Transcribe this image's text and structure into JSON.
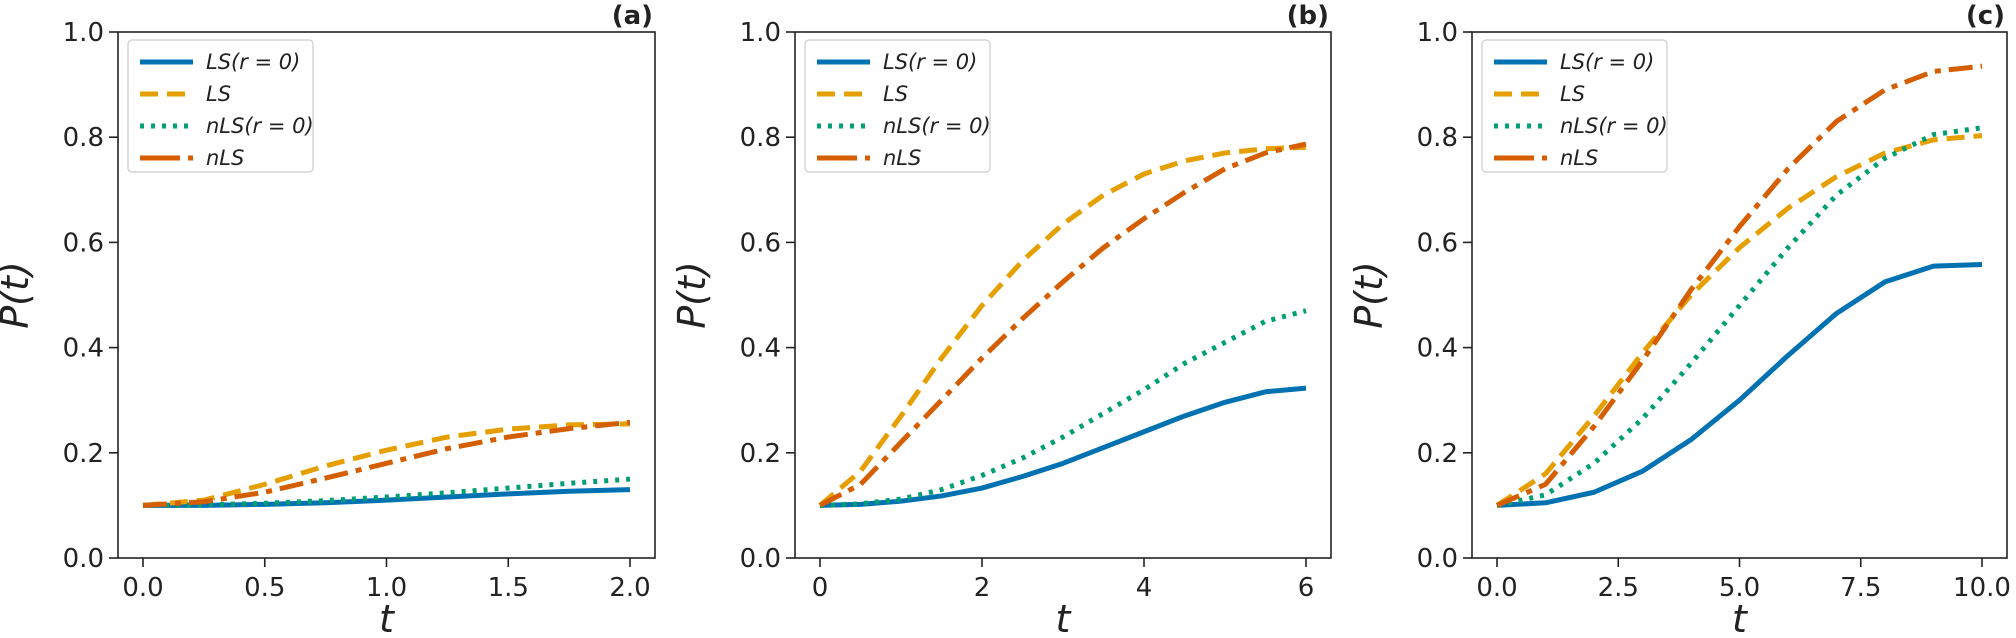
{
  "chart_data": [
    {
      "type": "line",
      "panel_label": "(a)",
      "xlabel": "t",
      "ylabel": "P(t)",
      "xlim": [
        0.0,
        2.0
      ],
      "ylim": [
        0.0,
        1.0
      ],
      "xticks": [
        "0.0",
        "0.5",
        "1.0",
        "1.5",
        "2.0"
      ],
      "yticks": [
        "0.0",
        "0.2",
        "0.4",
        "0.6",
        "0.8",
        "1.0"
      ],
      "legend_position": "top-left",
      "grid": false,
      "x": [
        0.0,
        0.25,
        0.5,
        0.75,
        1.0,
        1.25,
        1.5,
        1.75,
        2.0
      ],
      "series": [
        {
          "name": "LS(r = 0)",
          "style": "solid",
          "color": "#0072b2",
          "values": [
            0.1,
            0.1,
            0.102,
            0.105,
            0.11,
            0.116,
            0.122,
            0.127,
            0.13
          ]
        },
        {
          "name": "LS",
          "style": "dashed",
          "color": "#e69f00",
          "values": [
            0.1,
            0.11,
            0.14,
            0.175,
            0.205,
            0.23,
            0.245,
            0.253,
            0.255
          ]
        },
        {
          "name": "nLS(r = 0)",
          "style": "dotted",
          "color": "#009e73",
          "values": [
            0.1,
            0.101,
            0.104,
            0.109,
            0.116,
            0.124,
            0.133,
            0.142,
            0.15
          ]
        },
        {
          "name": "nLS",
          "style": "dashdot",
          "color": "#d55e00",
          "values": [
            0.1,
            0.107,
            0.125,
            0.152,
            0.18,
            0.208,
            0.23,
            0.246,
            0.258
          ]
        }
      ]
    },
    {
      "type": "line",
      "panel_label": "(b)",
      "xlabel": "t",
      "ylabel": "P(t)",
      "xlim": [
        0,
        6
      ],
      "ylim": [
        0.0,
        1.0
      ],
      "xticks": [
        "0",
        "2",
        "4",
        "6"
      ],
      "yticks": [
        "0.0",
        "0.2",
        "0.4",
        "0.6",
        "0.8",
        "1.0"
      ],
      "legend_position": "top-left",
      "grid": false,
      "x": [
        0,
        0.5,
        1,
        1.5,
        2,
        2.5,
        3,
        3.5,
        4,
        4.5,
        5,
        5.5,
        6
      ],
      "series": [
        {
          "name": "LS(r = 0)",
          "style": "solid",
          "color": "#0072b2",
          "values": [
            0.1,
            0.102,
            0.108,
            0.118,
            0.133,
            0.155,
            0.18,
            0.21,
            0.24,
            0.27,
            0.296,
            0.316,
            0.323
          ]
        },
        {
          "name": "LS",
          "style": "dashed",
          "color": "#e69f00",
          "values": [
            0.1,
            0.165,
            0.27,
            0.38,
            0.48,
            0.565,
            0.635,
            0.69,
            0.73,
            0.755,
            0.77,
            0.778,
            0.781
          ]
        },
        {
          "name": "nLS(r = 0)",
          "style": "dotted",
          "color": "#009e73",
          "values": [
            0.1,
            0.103,
            0.112,
            0.13,
            0.157,
            0.19,
            0.23,
            0.275,
            0.32,
            0.37,
            0.41,
            0.45,
            0.47
          ]
        },
        {
          "name": "nLS",
          "style": "dashdot",
          "color": "#d55e00",
          "values": [
            0.1,
            0.14,
            0.22,
            0.3,
            0.38,
            0.455,
            0.525,
            0.59,
            0.645,
            0.695,
            0.74,
            0.77,
            0.787
          ]
        }
      ]
    },
    {
      "type": "line",
      "panel_label": "(c)",
      "xlabel": "t",
      "ylabel": "P(t)",
      "xlim": [
        0.0,
        10.0
      ],
      "ylim": [
        0.0,
        1.0
      ],
      "xticks": [
        "0.0",
        "2.5",
        "5.0",
        "7.5",
        "10.0"
      ],
      "yticks": [
        "0.0",
        "0.2",
        "0.4",
        "0.6",
        "0.8",
        "1.0"
      ],
      "legend_position": "top-left",
      "grid": false,
      "x": [
        0,
        1,
        2,
        3,
        4,
        5,
        6,
        7,
        8,
        9,
        10
      ],
      "series": [
        {
          "name": "LS(r = 0)",
          "style": "solid",
          "color": "#0072b2",
          "values": [
            0.1,
            0.105,
            0.125,
            0.165,
            0.225,
            0.3,
            0.385,
            0.465,
            0.525,
            0.555,
            0.558
          ]
        },
        {
          "name": "LS",
          "style": "dashed",
          "color": "#e69f00",
          "values": [
            0.1,
            0.16,
            0.27,
            0.39,
            0.5,
            0.59,
            0.665,
            0.725,
            0.77,
            0.795,
            0.803
          ]
        },
        {
          "name": "nLS(r = 0)",
          "style": "dotted",
          "color": "#009e73",
          "values": [
            0.1,
            0.12,
            0.18,
            0.265,
            0.37,
            0.48,
            0.59,
            0.69,
            0.76,
            0.805,
            0.818
          ]
        },
        {
          "name": "nLS",
          "style": "dashdot",
          "color": "#d55e00",
          "values": [
            0.1,
            0.14,
            0.25,
            0.375,
            0.51,
            0.63,
            0.74,
            0.83,
            0.89,
            0.925,
            0.935
          ]
        }
      ]
    }
  ]
}
